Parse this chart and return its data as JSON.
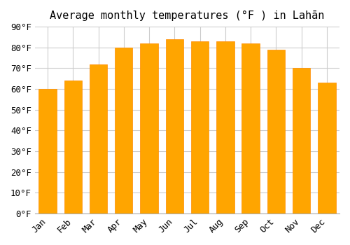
{
  "title": "Average monthly temperatures (°F ) in Lahān",
  "months": [
    "Jan",
    "Feb",
    "Mar",
    "Apr",
    "May",
    "Jun",
    "Jul",
    "Aug",
    "Sep",
    "Oct",
    "Nov",
    "Dec"
  ],
  "values": [
    60,
    64,
    72,
    80,
    82,
    84,
    83,
    83,
    82,
    79,
    70,
    63
  ],
  "bar_color": "#FFA500",
  "bar_edge_color": "#FF8C00",
  "ylim": [
    0,
    90
  ],
  "yticks": [
    0,
    10,
    20,
    30,
    40,
    50,
    60,
    70,
    80,
    90
  ],
  "background_color": "#ffffff",
  "grid_color": "#cccccc",
  "title_fontsize": 11,
  "tick_fontsize": 9
}
